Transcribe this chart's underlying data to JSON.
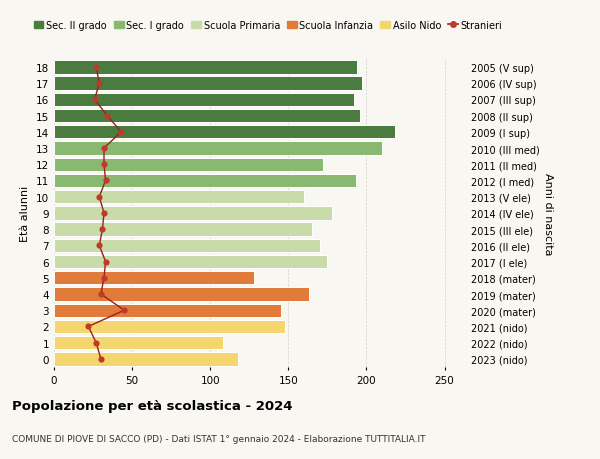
{
  "ages": [
    0,
    1,
    2,
    3,
    4,
    5,
    6,
    7,
    8,
    9,
    10,
    11,
    12,
    13,
    14,
    15,
    16,
    17,
    18
  ],
  "right_labels": [
    "2023 (nido)",
    "2022 (nido)",
    "2021 (nido)",
    "2020 (mater)",
    "2019 (mater)",
    "2018 (mater)",
    "2017 (I ele)",
    "2016 (II ele)",
    "2015 (III ele)",
    "2014 (IV ele)",
    "2013 (V ele)",
    "2012 (I med)",
    "2011 (II med)",
    "2010 (III med)",
    "2009 (I sup)",
    "2008 (II sup)",
    "2007 (III sup)",
    "2006 (IV sup)",
    "2005 (V sup)"
  ],
  "bar_values": [
    118,
    108,
    148,
    145,
    163,
    128,
    175,
    170,
    165,
    178,
    160,
    193,
    172,
    210,
    218,
    196,
    192,
    197,
    194
  ],
  "bar_colors": [
    "#f5d56e",
    "#f5d56e",
    "#f5d56e",
    "#e07b39",
    "#e07b39",
    "#e07b39",
    "#c8dba8",
    "#c8dba8",
    "#c8dba8",
    "#c8dba8",
    "#c8dba8",
    "#8ab870",
    "#8ab870",
    "#8ab870",
    "#4a7c3f",
    "#4a7c3f",
    "#4a7c3f",
    "#4a7c3f",
    "#4a7c3f"
  ],
  "stranieri_values": [
    30,
    27,
    22,
    45,
    30,
    32,
    33,
    29,
    31,
    32,
    29,
    33,
    32,
    32,
    43,
    34,
    26,
    29,
    27
  ],
  "legend_labels": [
    "Sec. II grado",
    "Sec. I grado",
    "Scuola Primaria",
    "Scuola Infanzia",
    "Asilo Nido",
    "Stranieri"
  ],
  "legend_colors": [
    "#4a7c3f",
    "#8ab870",
    "#c8dba8",
    "#e07b39",
    "#f5d56e",
    "#c0392b"
  ],
  "ylabel_left": "Età alunni",
  "ylabel_right": "Anni di nascita",
  "title": "Popolazione per età scolastica - 2024",
  "subtitle": "COMUNE DI PIOVE DI SACCO (PD) - Dati ISTAT 1° gennaio 2024 - Elaborazione TUTTITALIA.IT",
  "xlim": [
    0,
    265
  ],
  "background_color": "#f9f7f2",
  "grid_color": "#cccccc",
  "stranieri_line_color": "#9b2020",
  "stranieri_dot_color": "#c0392b"
}
